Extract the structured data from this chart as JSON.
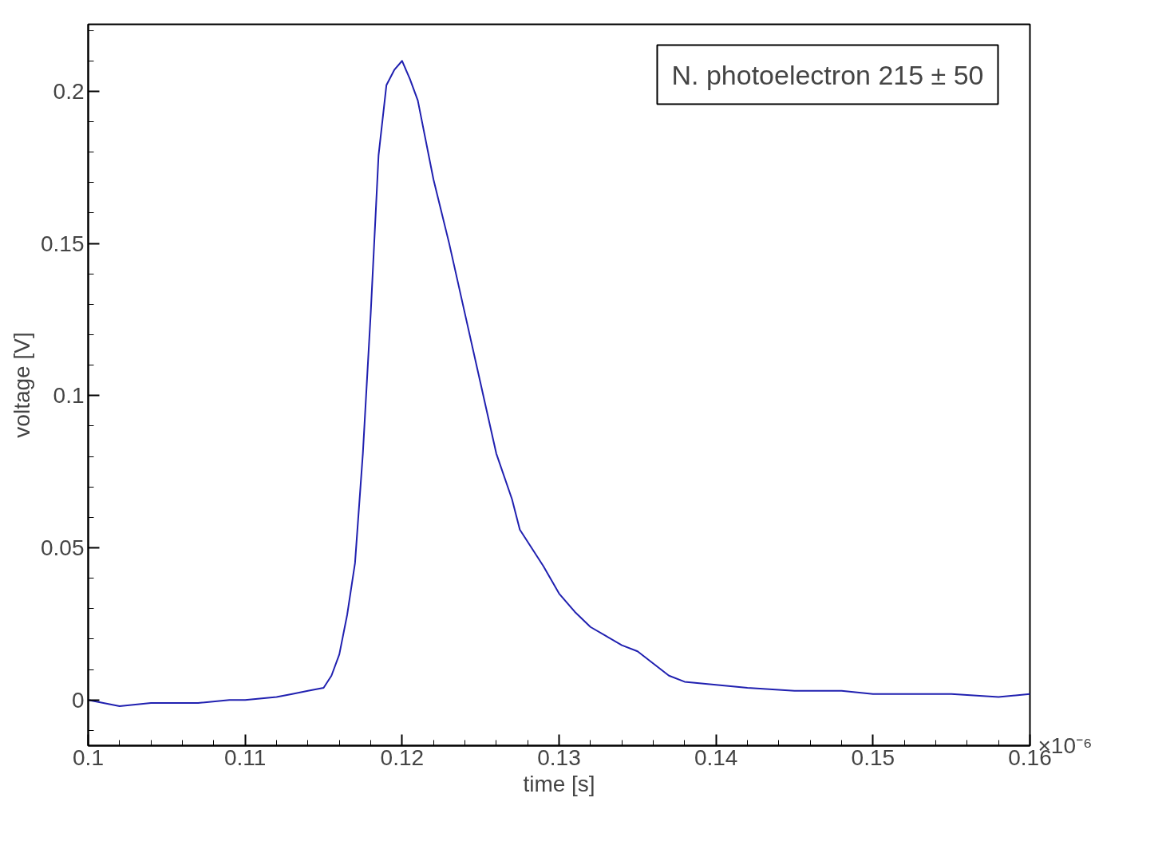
{
  "chart_data": {
    "type": "line",
    "xlabel": "time [s]",
    "ylabel": "voltage [V]",
    "annotations": [
      "N. photoelectron 215 ± 50",
      "×10⁻⁶"
    ],
    "xlim": [
      0.1,
      0.16
    ],
    "ylim": [
      -0.015,
      0.222
    ],
    "xticks": [
      0.1,
      0.11,
      0.12,
      0.13,
      0.14,
      0.15,
      0.16
    ],
    "yticks": [
      0,
      0.05,
      0.1,
      0.15,
      0.2
    ],
    "grid": false,
    "marker": "none",
    "line_style": "solid",
    "series": [
      {
        "color": "#2020b0",
        "x": [
          0.1,
          0.102,
          0.104,
          0.105,
          0.107,
          0.109,
          0.11,
          0.112,
          0.113,
          0.114,
          0.115,
          0.1155,
          0.116,
          0.1165,
          0.117,
          0.1175,
          0.118,
          0.1185,
          0.119,
          0.1195,
          0.12,
          0.1205,
          0.121,
          0.122,
          0.123,
          0.124,
          0.125,
          0.126,
          0.127,
          0.1275,
          0.128,
          0.129,
          0.13,
          0.131,
          0.132,
          0.133,
          0.134,
          0.135,
          0.136,
          0.137,
          0.138,
          0.14,
          0.142,
          0.145,
          0.148,
          0.15,
          0.152,
          0.155,
          0.158,
          0.16
        ],
        "values": [
          0,
          -0.002,
          -0.001,
          -0.001,
          -0.001,
          0,
          0,
          0.001,
          0.002,
          0.003,
          0.004,
          0.008,
          0.015,
          0.028,
          0.045,
          0.081,
          0.127,
          0.179,
          0.202,
          0.207,
          0.21,
          0.204,
          0.197,
          0.171,
          0.15,
          0.127,
          0.104,
          0.081,
          0.066,
          0.056,
          0.052,
          0.044,
          0.035,
          0.029,
          0.024,
          0.021,
          0.018,
          0.016,
          0.012,
          0.008,
          0.006,
          0.005,
          0.004,
          0.003,
          0.003,
          0.002,
          0.002,
          0.002,
          0.001,
          0.002
        ]
      }
    ]
  }
}
